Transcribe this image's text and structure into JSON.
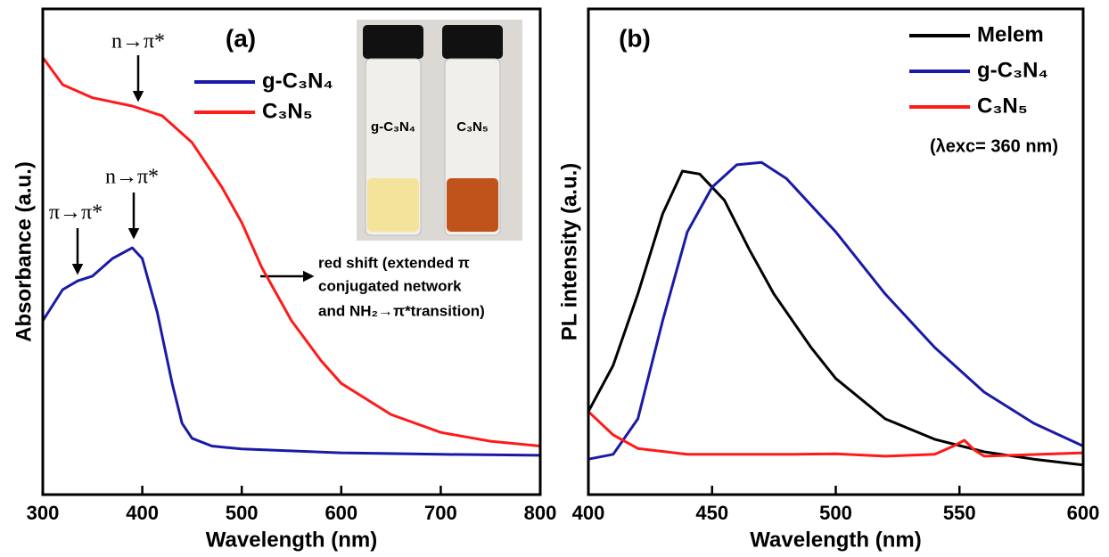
{
  "chart_data": [
    {
      "type": "line",
      "annotation_panel": "(a)",
      "x_label": "Wavelength (nm)",
      "y_label": "Absorbance (a.u.)",
      "xlim": [
        300,
        800
      ],
      "xticks": [
        300,
        400,
        500,
        600,
        700,
        800
      ],
      "ylim": [
        0,
        1
      ],
      "legend": "upper center",
      "annotations": [
        "n→π*",
        "n→π*",
        "π→π*",
        "red shift (extended π",
        "conjugated network",
        "and NH₂→π*transition)"
      ],
      "inset_labels": [
        "g-C₃N₄",
        "C₃N₅"
      ],
      "series": [
        {
          "name": "g-C₃N₄",
          "color": "#1a1aa6",
          "x": [
            300,
            320,
            335,
            350,
            370,
            390,
            400,
            415,
            430,
            440,
            450,
            470,
            500,
            600,
            700,
            800
          ],
          "values": [
            0.358,
            0.422,
            0.44,
            0.45,
            0.486,
            0.508,
            0.486,
            0.376,
            0.229,
            0.147,
            0.116,
            0.1,
            0.094,
            0.086,
            0.083,
            0.081
          ]
        },
        {
          "name": "C₃N₅",
          "color": "#ff1a1a",
          "x": [
            300,
            320,
            350,
            390,
            420,
            450,
            480,
            500,
            520,
            550,
            580,
            600,
            650,
            700,
            750,
            800
          ],
          "values": [
            0.9,
            0.844,
            0.817,
            0.8,
            0.78,
            0.725,
            0.633,
            0.56,
            0.468,
            0.358,
            0.275,
            0.229,
            0.165,
            0.128,
            0.11,
            0.1
          ]
        }
      ]
    },
    {
      "type": "line",
      "annotation_panel": "(b)",
      "x_label": "Wavelength (nm)",
      "y_label": "PL intensity (a.u.)",
      "xlim": [
        400,
        600
      ],
      "xticks": [
        400,
        450,
        500,
        550,
        600
      ],
      "ylim": [
        0,
        1
      ],
      "legend": "upper right",
      "annotations": [
        "(λexc= 360 nm)"
      ],
      "series": [
        {
          "name": "Melem",
          "color": "#000000",
          "x": [
            400,
            410,
            420,
            430,
            438,
            445,
            455,
            465,
            475,
            490,
            500,
            520,
            540,
            560,
            580,
            600
          ],
          "values": [
            0.171,
            0.266,
            0.413,
            0.578,
            0.666,
            0.66,
            0.606,
            0.505,
            0.413,
            0.303,
            0.239,
            0.156,
            0.114,
            0.088,
            0.073,
            0.061
          ]
        },
        {
          "name": "g-C₃N₄",
          "color": "#1a1aa6",
          "x": [
            400,
            410,
            420,
            430,
            440,
            450,
            460,
            470,
            480,
            500,
            520,
            540,
            560,
            580,
            600
          ],
          "values": [
            0.073,
            0.083,
            0.156,
            0.358,
            0.541,
            0.633,
            0.679,
            0.684,
            0.651,
            0.541,
            0.413,
            0.303,
            0.211,
            0.147,
            0.1
          ]
        },
        {
          "name": "C₃N₅",
          "color": "#ff1a1a",
          "x": [
            400,
            410,
            420,
            440,
            480,
            500,
            520,
            540,
            548,
            552,
            556,
            560,
            600
          ],
          "values": [
            0.171,
            0.123,
            0.095,
            0.083,
            0.083,
            0.084,
            0.079,
            0.083,
            0.101,
            0.112,
            0.092,
            0.079,
            0.086
          ]
        }
      ]
    }
  ]
}
